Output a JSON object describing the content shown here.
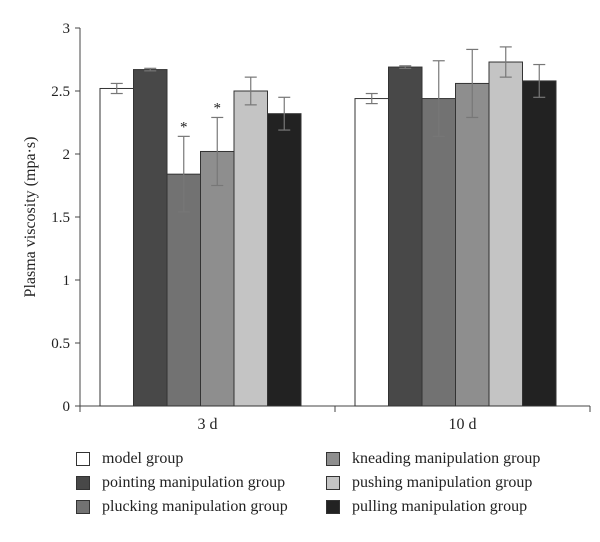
{
  "chart_data": {
    "type": "bar",
    "categories": [
      "3 d",
      "10 d"
    ],
    "ylabel": "Plasma viscosity (mpa·s)",
    "ylim": [
      0,
      3
    ],
    "yticks": [
      "0",
      "0.5",
      "1",
      "1.5",
      "2",
      "2.5",
      "3"
    ],
    "grid": false,
    "legend_position": "bottom",
    "series": [
      {
        "name": "model group",
        "color": "#ffffff",
        "values": [
          2.52,
          2.44
        ],
        "errors": [
          0.04,
          0.04
        ]
      },
      {
        "name": "pointing manipulation group",
        "color": "#484848",
        "values": [
          2.67,
          2.69
        ],
        "errors": [
          0.01,
          0.01
        ]
      },
      {
        "name": "plucking manipulation group",
        "color": "#727272",
        "values": [
          1.84,
          2.44
        ],
        "errors": [
          0.3,
          0.3
        ]
      },
      {
        "name": "kneading manipulation group",
        "color": "#8e8e8e",
        "values": [
          2.02,
          2.56
        ],
        "errors": [
          0.27,
          0.27
        ]
      },
      {
        "name": "pushing manipulation group",
        "color": "#c4c4c4",
        "values": [
          2.5,
          2.73
        ],
        "errors": [
          0.11,
          0.12
        ]
      },
      {
        "name": "pulling manipulation group",
        "color": "#222222",
        "values": [
          2.32,
          2.58
        ],
        "errors": [
          0.13,
          0.13
        ]
      }
    ],
    "annotations": [
      {
        "series": 2,
        "category": 0,
        "text": "*"
      },
      {
        "series": 3,
        "category": 0,
        "text": "*"
      }
    ]
  }
}
